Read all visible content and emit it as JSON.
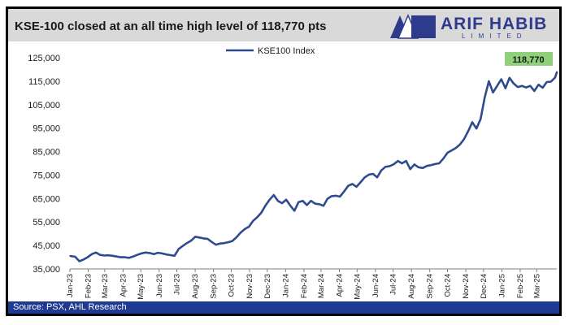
{
  "header": {
    "title": "KSE-100 closed at an all time high level of 118,770 pts",
    "logo_main": "ARIF HABIB",
    "logo_sub": "LIMITED"
  },
  "footer": {
    "source": "Source: PSX, AHL Research"
  },
  "colors": {
    "line": "#2f4b8f",
    "callout_bg": "#8fd17a",
    "footer_bg": "#1f3a93",
    "header_bg": "#d9d9d9",
    "logo": "#2e3b8c"
  },
  "chart_data": {
    "type": "line",
    "title": "KSE-100 closed at an all time high level of 118,770 pts",
    "xlabel": "",
    "ylabel": "",
    "ylim": [
      35000,
      125000
    ],
    "yticks": [
      35000,
      45000,
      55000,
      65000,
      75000,
      85000,
      95000,
      105000,
      115000,
      125000
    ],
    "ytick_labels": [
      "35,000",
      "45,000",
      "55,000",
      "65,000",
      "75,000",
      "85,000",
      "95,000",
      "105,000",
      "115,000",
      "125,000"
    ],
    "xtick_labels": [
      "Jan-23",
      "Feb-23",
      "Mar-23",
      "Apr-23",
      "May-23",
      "Jun-23",
      "Jul-23",
      "Aug-23",
      "Sep-23",
      "Oct-23",
      "Nov-23",
      "Dec-23",
      "Jan-24",
      "Feb-24",
      "Mar-24",
      "Apr-24",
      "May-24",
      "Jun-24",
      "Jul-24",
      "Aug-24",
      "Sep-24",
      "Oct-24",
      "Nov-24",
      "Dec-24",
      "Jan-25",
      "Feb-25",
      "Mar-25"
    ],
    "legend": {
      "position": "top-center",
      "entries": [
        "KSE100 Index"
      ]
    },
    "grid": false,
    "annotation": {
      "text": "118,770",
      "x": "2025-04-04",
      "y": 118770
    },
    "series": [
      {
        "name": "KSE100 Index",
        "color": "#2f4b8f",
        "x": [
          "2023-01-02",
          "2023-01-10",
          "2023-01-17",
          "2023-01-24",
          "2023-01-31",
          "2023-02-07",
          "2023-02-14",
          "2023-02-21",
          "2023-02-28",
          "2023-03-07",
          "2023-03-14",
          "2023-03-21",
          "2023-03-28",
          "2023-04-04",
          "2023-04-11",
          "2023-04-18",
          "2023-04-25",
          "2023-05-02",
          "2023-05-09",
          "2023-05-16",
          "2023-05-23",
          "2023-05-30",
          "2023-06-06",
          "2023-06-13",
          "2023-06-20",
          "2023-06-27",
          "2023-07-04",
          "2023-07-11",
          "2023-07-18",
          "2023-07-25",
          "2023-08-01",
          "2023-08-08",
          "2023-08-15",
          "2023-08-22",
          "2023-08-29",
          "2023-09-05",
          "2023-09-12",
          "2023-09-19",
          "2023-09-26",
          "2023-10-03",
          "2023-10-10",
          "2023-10-17",
          "2023-10-24",
          "2023-10-31",
          "2023-11-07",
          "2023-11-14",
          "2023-11-21",
          "2023-11-28",
          "2023-12-05",
          "2023-12-12",
          "2023-12-19",
          "2023-12-26",
          "2024-01-02",
          "2024-01-09",
          "2024-01-16",
          "2024-01-23",
          "2024-01-30",
          "2024-02-06",
          "2024-02-13",
          "2024-02-20",
          "2024-02-27",
          "2024-03-05",
          "2024-03-12",
          "2024-03-19",
          "2024-03-26",
          "2024-04-02",
          "2024-04-09",
          "2024-04-16",
          "2024-04-23",
          "2024-04-30",
          "2024-05-07",
          "2024-05-14",
          "2024-05-21",
          "2024-05-28",
          "2024-06-04",
          "2024-06-11",
          "2024-06-18",
          "2024-06-25",
          "2024-07-02",
          "2024-07-09",
          "2024-07-16",
          "2024-07-23",
          "2024-07-30",
          "2024-08-06",
          "2024-08-13",
          "2024-08-20",
          "2024-08-27",
          "2024-09-03",
          "2024-09-10",
          "2024-09-17",
          "2024-09-24",
          "2024-10-01",
          "2024-10-08",
          "2024-10-15",
          "2024-10-22",
          "2024-10-29",
          "2024-11-05",
          "2024-11-12",
          "2024-11-19",
          "2024-11-26",
          "2024-12-03",
          "2024-12-10",
          "2024-12-17",
          "2024-12-24",
          "2024-12-31",
          "2025-01-07",
          "2025-01-14",
          "2025-01-21",
          "2025-01-28",
          "2025-02-04",
          "2025-02-11",
          "2025-02-18",
          "2025-02-25",
          "2025-03-04",
          "2025-03-11",
          "2025-03-18",
          "2025-03-25",
          "2025-04-01",
          "2025-04-04"
        ],
        "y": [
          40500,
          40200,
          38300,
          39000,
          40000,
          41300,
          42000,
          41000,
          40700,
          40800,
          40600,
          40300,
          40000,
          40000,
          39700,
          40300,
          41000,
          41600,
          42000,
          41800,
          41300,
          41900,
          41600,
          41200,
          40900,
          40600,
          43500,
          44800,
          46000,
          47000,
          48700,
          48400,
          48000,
          47800,
          46500,
          45300,
          45800,
          46000,
          46400,
          46900,
          48500,
          50500,
          52000,
          53000,
          55500,
          57000,
          59000,
          62000,
          64500,
          66500,
          64000,
          63000,
          64500,
          62000,
          59800,
          63500,
          64000,
          62200,
          64000,
          62800,
          62600,
          61900,
          64900,
          66000,
          66200,
          65800,
          68000,
          70400,
          71200,
          70000,
          72000,
          74000,
          75200,
          75500,
          74000,
          77000,
          78500,
          78800,
          79600,
          81000,
          80000,
          81000,
          77500,
          79500,
          78300,
          78000,
          78900,
          79200,
          79700,
          80000,
          82000,
          84500,
          85500,
          86500,
          88000,
          90300,
          93700,
          97500,
          94800,
          98800,
          108000,
          115000,
          110200,
          113000,
          115800,
          112000,
          116400,
          114000,
          112500,
          113000,
          112300,
          113000,
          110800,
          113500,
          112200,
          114600,
          114800,
          116500,
          118770
        ]
      }
    ]
  }
}
